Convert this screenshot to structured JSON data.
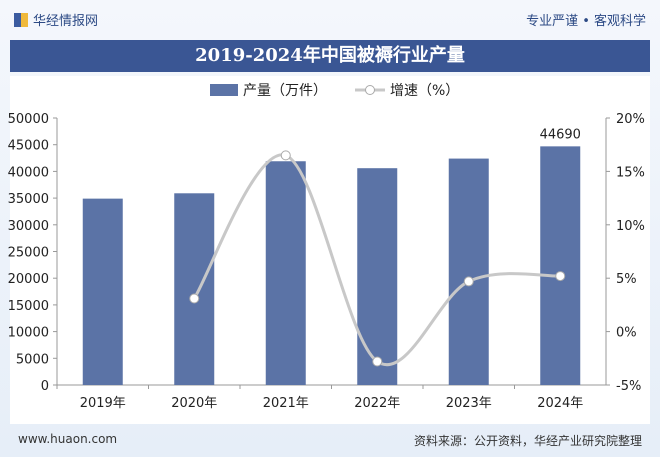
{
  "header": {
    "logo_text": "华经情报网",
    "slogan": "专业严谨 • 客观科学"
  },
  "footer": {
    "website": "www.huaon.com",
    "source": "资料来源：公开资料，华经产业研究院整理"
  },
  "watermark": "华经产业研究院 www.huaon.com",
  "colors": {
    "bar": "#5b73a6",
    "line": "#c8c8c8",
    "title_bar": "#3a5694"
  },
  "chart_data": {
    "type": "bar+line",
    "title": "2019-2024年中国被褥行业产量",
    "categories": [
      "2019年",
      "2020年",
      "2021年",
      "2022年",
      "2023年",
      "2024年"
    ],
    "series": [
      {
        "name": "产量（万件）",
        "type": "bar",
        "axis": "left",
        "values": [
          34900,
          35900,
          41900,
          40600,
          42400,
          44690
        ]
      },
      {
        "name": "增速（%）",
        "type": "line",
        "axis": "right",
        "values": [
          null,
          3.1,
          16.5,
          -2.8,
          4.7,
          5.2
        ]
      }
    ],
    "data_labels": [
      {
        "category": "2024年",
        "text": "44690"
      }
    ],
    "left_axis": {
      "ylim": [
        0,
        50000
      ],
      "ticks": [
        "0",
        "5000",
        "10000",
        "15000",
        "20000",
        "25000",
        "30000",
        "35000",
        "40000",
        "45000",
        "50000"
      ]
    },
    "right_axis": {
      "ylim": [
        -5,
        20
      ],
      "ticks": [
        "-5%",
        "0%",
        "5%",
        "10%",
        "15%",
        "20%"
      ]
    },
    "legend_position": "top",
    "grid": false
  }
}
